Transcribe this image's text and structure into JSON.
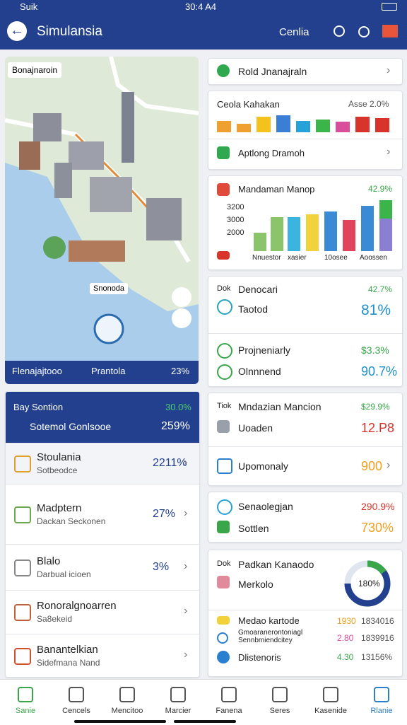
{
  "status": {
    "carrier": "Suik",
    "time": "30:4 A4"
  },
  "header": {
    "title": "Simulansia",
    "action": "Cenlia"
  },
  "map": {
    "label": "Bonajnaroin",
    "marker": "Snonoda",
    "footer": {
      "left": "Flenajajtooo",
      "middle": "Prantola",
      "right": "23%"
    }
  },
  "left_panel": {
    "title": "Bay Sontion",
    "title_value": "30.0%",
    "subtitle": "Sotemol Gonlsooe",
    "subtitle_value": "259%",
    "items": [
      {
        "title": "Stoulania",
        "subtitle": "Sotbeodce",
        "value": "2211%"
      },
      {
        "title": "Madptern",
        "subtitle": "Dackan Seckonen",
        "value": "27%"
      },
      {
        "title": "Blalo",
        "subtitle": "Darbual icioen",
        "value": "3%"
      },
      {
        "title": "Ronoralgnoarren",
        "subtitle": "Sa8ekeid"
      },
      {
        "title": "Banantelkian",
        "subtitle": "Sidefmana Nand"
      }
    ]
  },
  "cards": [
    {
      "title": "Rold Jnanajraln"
    },
    {
      "title": "Ceola Kahakan",
      "value": "Asse 2.0%",
      "link": "Aptlong Dramoh"
    },
    {
      "title": "Mandaman Manop",
      "value": "42.9%",
      "axis_labels": [
        "3200",
        "3000",
        "2000"
      ],
      "x_labels": [
        "Nnuestor",
        "xasier",
        "10osee",
        "Aoossen"
      ]
    },
    {
      "prefix": "Dok",
      "title": "Denocari",
      "value": "42.7%",
      "rows": [
        {
          "label": "Taotod",
          "value": "81%"
        },
        {
          "label": "Projneniarly",
          "value": "$3.3%"
        },
        {
          "label": "Olnnnend",
          "value": "90.7%"
        }
      ]
    },
    {
      "prefix": "Tiok",
      "title": "Mndazian Mancion",
      "value": "$29.9%",
      "rows": [
        {
          "label": "Uoaden",
          "value": "12.P8"
        },
        {
          "label": "Upomonaly",
          "value": "900"
        }
      ]
    },
    {
      "rows": [
        {
          "label": "Senaolegjan",
          "value": "290.9%"
        },
        {
          "label": "Sottlen",
          "value": "730%"
        }
      ]
    },
    {
      "prefix": "Dok",
      "title": "Padkan Kanaodo",
      "sub": "Merkolo",
      "donut": "180%",
      "rows": [
        {
          "label": "Medao kartode",
          "a": "1930",
          "b": "1834016"
        },
        {
          "label": "Gmoaranerontoniagl Sennbmiendcitey",
          "a": "2.80",
          "b": "1839916"
        },
        {
          "label": "Dlistenoris",
          "a": "4.30",
          "b": "13156%"
        }
      ]
    }
  ],
  "nav": [
    "Sanie",
    "Cencels",
    "Mencitoo",
    "Marcier",
    "Fanena",
    "Seres",
    "Kasenide",
    "Rlanie"
  ]
}
